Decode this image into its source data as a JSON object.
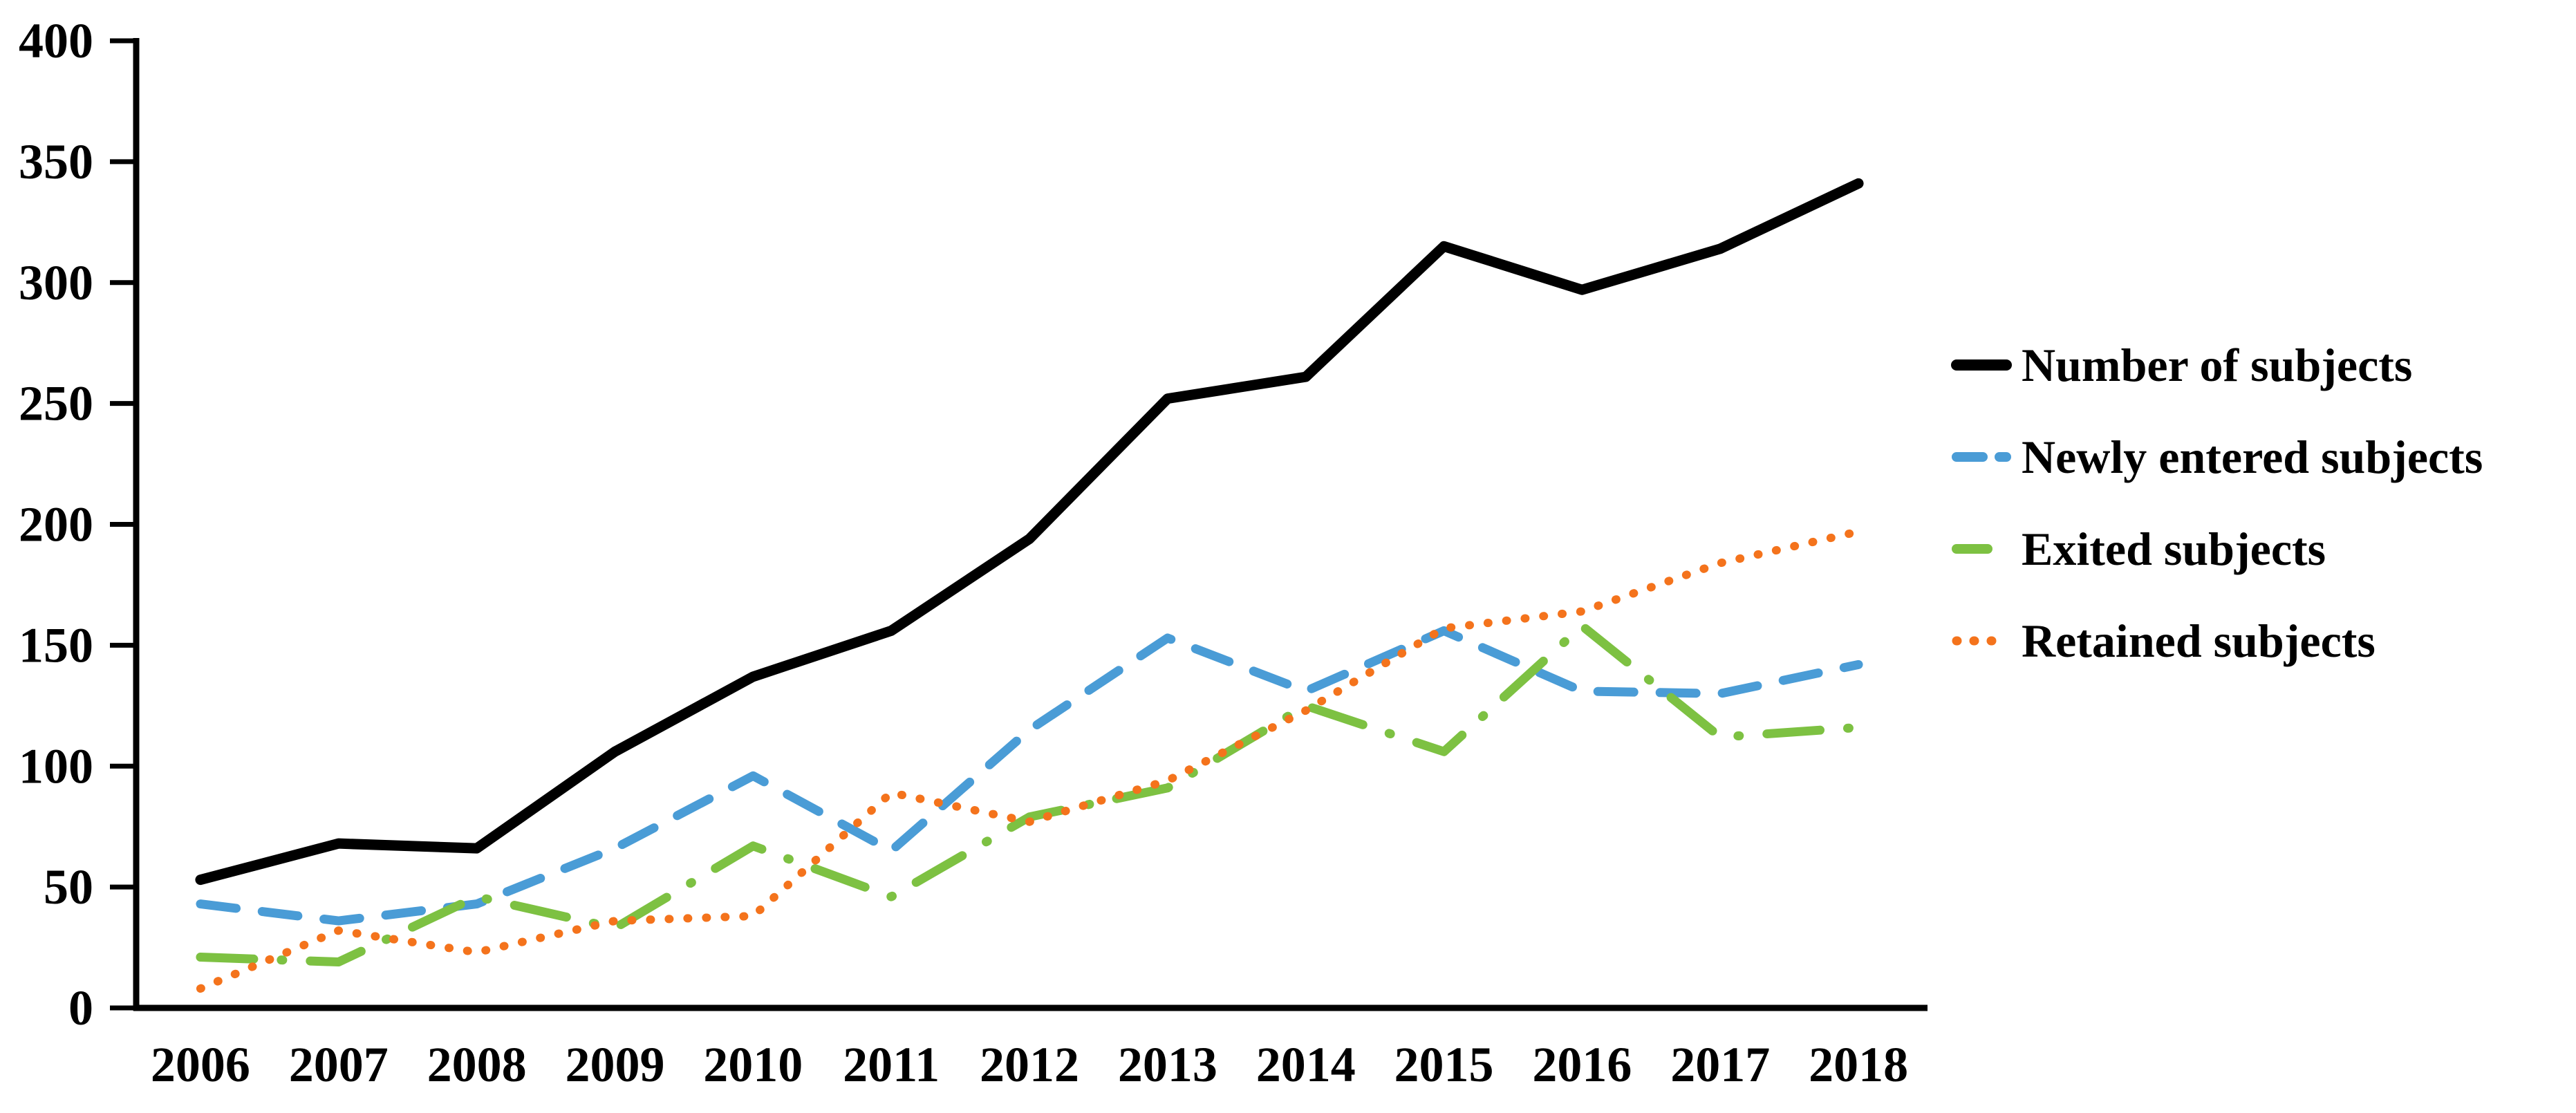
{
  "chart_data": {
    "type": "line",
    "title": "",
    "xlabel": "",
    "ylabel": "",
    "ylim": [
      0,
      400
    ],
    "y_ticks": [
      0,
      50,
      100,
      150,
      200,
      250,
      300,
      350,
      400
    ],
    "grid": false,
    "legend_position": "right",
    "categories": [
      "2006",
      "2007",
      "2008",
      "2009",
      "2010",
      "2011",
      "2012",
      "2013",
      "2014",
      "2015",
      "2016",
      "2017",
      "2018"
    ],
    "series": [
      {
        "name": "Number of subjects",
        "color": "#000000",
        "line_style": "solid",
        "values": [
          53,
          68,
          66,
          106,
          137,
          156,
          194,
          252,
          261,
          315,
          297,
          314,
          341
        ]
      },
      {
        "name": "Newly entered subjects",
        "color": "#4A9CD6",
        "line_style": "dashed",
        "values": [
          43,
          36,
          43,
          66,
          96,
          65,
          115,
          153,
          131,
          156,
          131,
          130,
          142
        ]
      },
      {
        "name": "Exited subjects",
        "color": "#7DC142",
        "line_style": "dash-dot",
        "values": [
          21,
          19,
          46,
          33,
          67,
          46,
          79,
          91,
          125,
          106,
          158,
          112,
          116
        ]
      },
      {
        "name": "Retained subjects",
        "color": "#F4731C",
        "line_style": "dotted",
        "values": [
          8,
          32,
          23,
          36,
          38,
          89,
          77,
          94,
          123,
          157,
          164,
          184,
          197
        ]
      }
    ]
  }
}
